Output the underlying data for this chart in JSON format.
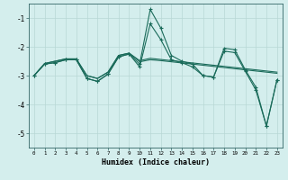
{
  "xlabel": "Humidex (Indice chaleur)",
  "bg_color": "#d4eeed",
  "grid_color": "#b8d8d6",
  "line_color": "#1a6b5a",
  "xlim": [
    -0.5,
    23.5
  ],
  "ylim": [
    -5.5,
    -0.5
  ],
  "yticks": [
    -5,
    -4,
    -3,
    -2,
    -1
  ],
  "x": [
    0,
    1,
    2,
    3,
    4,
    5,
    6,
    7,
    8,
    9,
    10,
    11,
    12,
    13,
    14,
    15,
    16,
    17,
    18,
    19,
    20,
    21,
    22,
    23
  ],
  "xtick_labels": [
    "0",
    "1",
    "2",
    "3",
    "4",
    "5",
    "6",
    "7",
    "8",
    "9",
    "10",
    "11",
    "12",
    "13",
    "14",
    "15",
    "16",
    "17",
    "18",
    "19",
    "20",
    "21",
    "22",
    "23"
  ],
  "line1": [
    -3.0,
    -2.6,
    -2.55,
    -2.45,
    -2.45,
    -3.1,
    -3.2,
    -2.95,
    -2.35,
    -2.25,
    -2.6,
    -0.7,
    -1.35,
    -2.3,
    -2.5,
    -2.6,
    -3.0,
    -3.05,
    -2.05,
    -2.1,
    -2.8,
    -3.4,
    -4.75,
    -3.15
  ],
  "line2": [
    -3.0,
    -2.6,
    -2.55,
    -2.45,
    -2.45,
    -3.1,
    -3.2,
    -2.95,
    -2.35,
    -2.25,
    -2.7,
    -1.2,
    -1.75,
    -2.45,
    -2.55,
    -2.7,
    -3.0,
    -3.05,
    -2.15,
    -2.2,
    -2.85,
    -3.5,
    -4.75,
    -3.15
  ],
  "line3": [
    -3.0,
    -2.58,
    -2.5,
    -2.42,
    -2.42,
    -3.0,
    -3.1,
    -2.88,
    -2.3,
    -2.22,
    -2.52,
    -2.45,
    -2.48,
    -2.52,
    -2.56,
    -2.6,
    -2.64,
    -2.68,
    -2.72,
    -2.76,
    -2.8,
    -2.84,
    -2.88,
    -2.92
  ],
  "line4": [
    -3.0,
    -2.58,
    -2.5,
    -2.42,
    -2.42,
    -3.0,
    -3.1,
    -2.88,
    -2.3,
    -2.22,
    -2.48,
    -2.4,
    -2.44,
    -2.48,
    -2.52,
    -2.56,
    -2.6,
    -2.64,
    -2.68,
    -2.72,
    -2.76,
    -2.8,
    -2.84,
    -2.88
  ]
}
